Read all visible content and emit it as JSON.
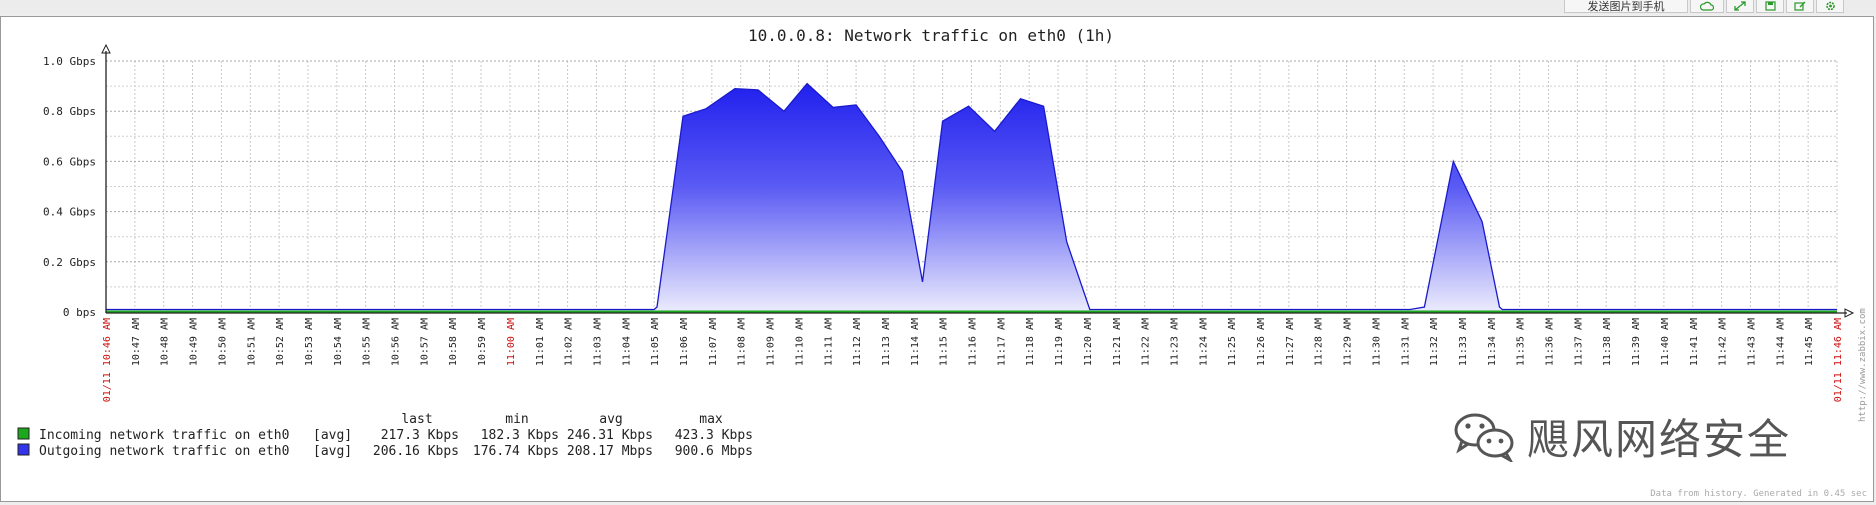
{
  "toolbar": {
    "send_label": "发送图片到手机",
    "icons": [
      "cloud-icon",
      "expand-icon",
      "save-icon",
      "edit-icon",
      "settings-icon"
    ]
  },
  "chart_data": {
    "type": "area",
    "title": "10.0.0.8: Network traffic on eth0 (1h)",
    "y_ticks": [
      "0 bps",
      "0.2 Gbps",
      "0.4 Gbps",
      "0.6 Gbps",
      "0.8 Gbps",
      "1.0 Gbps"
    ],
    "ylim": [
      0,
      1.0
    ],
    "y_unit": "Gbps",
    "x_labels": [
      "01/11 10:46 AM",
      "10:47 AM",
      "10:48 AM",
      "10:49 AM",
      "10:50 AM",
      "10:51 AM",
      "10:52 AM",
      "10:53 AM",
      "10:54 AM",
      "10:55 AM",
      "10:56 AM",
      "10:57 AM",
      "10:58 AM",
      "10:59 AM",
      "11:00 AM",
      "11:01 AM",
      "11:02 AM",
      "11:03 AM",
      "11:04 AM",
      "11:05 AM",
      "11:06 AM",
      "11:07 AM",
      "11:08 AM",
      "11:09 AM",
      "11:10 AM",
      "11:11 AM",
      "11:12 AM",
      "11:13 AM",
      "11:14 AM",
      "11:15 AM",
      "11:16 AM",
      "11:17 AM",
      "11:18 AM",
      "11:19 AM",
      "11:20 AM",
      "11:21 AM",
      "11:22 AM",
      "11:23 AM",
      "11:24 AM",
      "11:25 AM",
      "11:26 AM",
      "11:27 AM",
      "11:28 AM",
      "11:29 AM",
      "11:30 AM",
      "11:31 AM",
      "11:32 AM",
      "11:33 AM",
      "11:34 AM",
      "11:35 AM",
      "11:36 AM",
      "11:37 AM",
      "11:38 AM",
      "11:39 AM",
      "11:40 AM",
      "11:41 AM",
      "11:42 AM",
      "11:43 AM",
      "11:44 AM",
      "11:45 AM",
      "01/11 11:46 AM"
    ],
    "red_label_indices": [
      0,
      14,
      60
    ],
    "grid": true,
    "series": [
      {
        "name": "Outgoing network traffic on eth0",
        "color": "#3333ee",
        "points": [
          [
            0,
            0.01
          ],
          [
            19,
            0.01
          ],
          [
            19.1,
            0.02
          ],
          [
            20,
            0.78
          ],
          [
            20.8,
            0.81
          ],
          [
            21.8,
            0.89
          ],
          [
            22.6,
            0.885
          ],
          [
            23.5,
            0.8
          ],
          [
            24.3,
            0.91
          ],
          [
            25.2,
            0.815
          ],
          [
            26,
            0.825
          ],
          [
            26.8,
            0.7
          ],
          [
            27.6,
            0.56
          ],
          [
            28.3,
            0.12
          ],
          [
            29,
            0.76
          ],
          [
            29.9,
            0.82
          ],
          [
            30.8,
            0.72
          ],
          [
            31.7,
            0.85
          ],
          [
            32.5,
            0.82
          ],
          [
            33.3,
            0.28
          ],
          [
            34.1,
            0.01
          ],
          [
            34.2,
            0.01
          ],
          [
            45.2,
            0.01
          ],
          [
            45.7,
            0.02
          ],
          [
            46.7,
            0.6
          ],
          [
            47.7,
            0.36
          ],
          [
            48.3,
            0.02
          ],
          [
            48.4,
            0.01
          ],
          [
            60,
            0.01
          ]
        ]
      },
      {
        "name": "Incoming network traffic on eth0",
        "color": "#1ca81c",
        "points": [
          [
            0,
            0.0003
          ],
          [
            60,
            0.0003
          ]
        ]
      }
    ],
    "legend": {
      "headers": [
        "last",
        "min",
        "avg",
        "max"
      ],
      "rows": [
        {
          "name": "Incoming network traffic on eth0",
          "func": "[avg]",
          "last": "217.3 Kbps",
          "min": "182.3 Kbps",
          "avg": "246.31 Kbps",
          "max": "423.3 Kbps",
          "color": "#1ca81c"
        },
        {
          "name": "Outgoing network traffic on eth0",
          "func": "[avg]",
          "last": "206.16 Kbps",
          "min": "176.74 Kbps",
          "avg": "208.17 Mbps",
          "max": "900.6 Mbps",
          "color": "#3333ee"
        }
      ]
    },
    "side_text": "http://www.zabbix.com",
    "footer_text": "Data from history. Generated in 0.45 sec"
  },
  "watermark": {
    "text": "飓风网络安全"
  }
}
